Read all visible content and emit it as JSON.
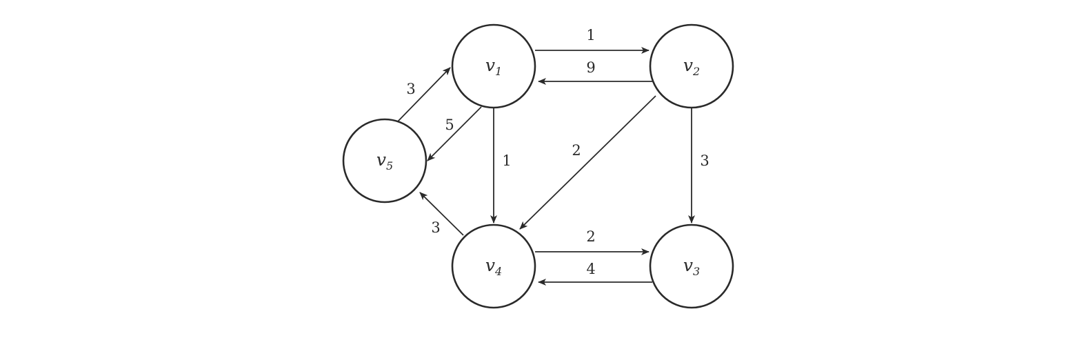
{
  "graph": {
    "nodes": [
      {
        "id": "v1",
        "letter": "v",
        "sub": "1"
      },
      {
        "id": "v2",
        "letter": "v",
        "sub": "2"
      },
      {
        "id": "v3",
        "letter": "v",
        "sub": "3"
      },
      {
        "id": "v4",
        "letter": "v",
        "sub": "4"
      },
      {
        "id": "v5",
        "letter": "v",
        "sub": "5"
      }
    ],
    "edges": [
      {
        "from": "v1",
        "to": "v2",
        "weight": "1"
      },
      {
        "from": "v2",
        "to": "v1",
        "weight": "9"
      },
      {
        "from": "v5",
        "to": "v1",
        "weight": "3"
      },
      {
        "from": "v1",
        "to": "v5",
        "weight": "5"
      },
      {
        "from": "v1",
        "to": "v4",
        "weight": "1"
      },
      {
        "from": "v2",
        "to": "v4",
        "weight": "2"
      },
      {
        "from": "v2",
        "to": "v3",
        "weight": "3"
      },
      {
        "from": "v4",
        "to": "v5",
        "weight": "3"
      },
      {
        "from": "v4",
        "to": "v3",
        "weight": "2"
      },
      {
        "from": "v3",
        "to": "v4",
        "weight": "4"
      }
    ]
  }
}
